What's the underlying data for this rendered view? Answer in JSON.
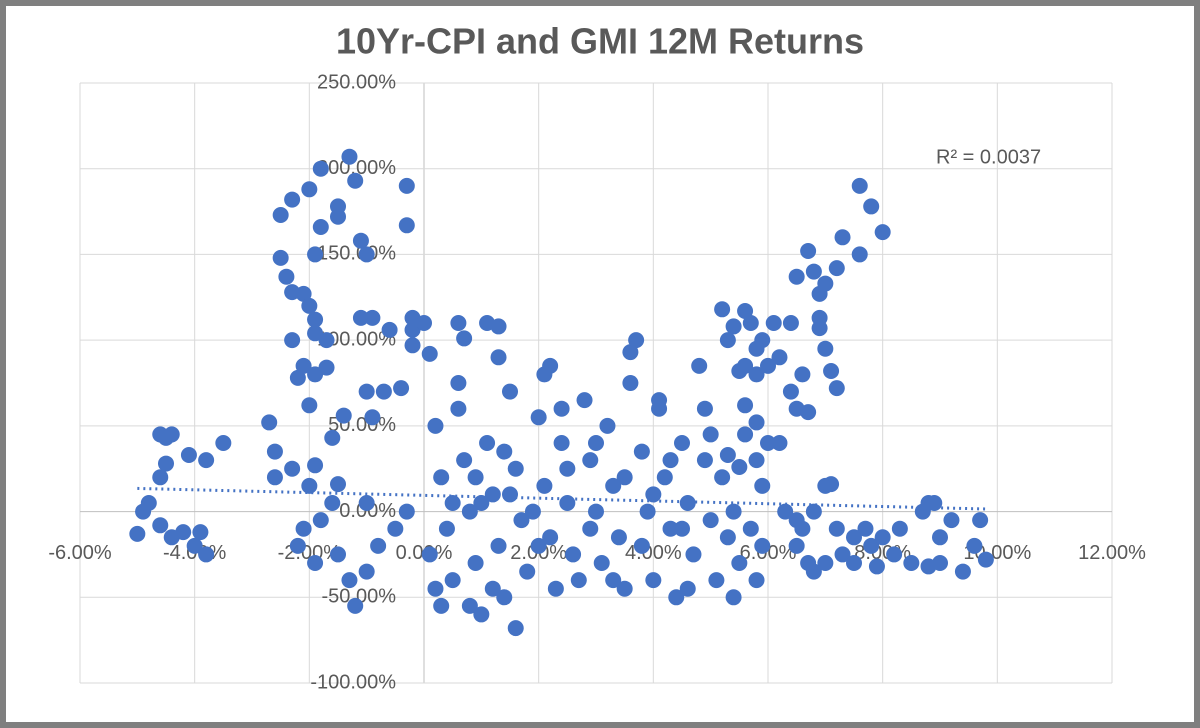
{
  "chart_data": {
    "type": "scatter",
    "title": "10Yr-CPI and GMI 12M Returns",
    "annotation": "R² = 0.0037",
    "color": "#4472c4",
    "grid": true,
    "xlim": [
      -6,
      12
    ],
    "xticks": [
      {
        "value": -6,
        "label": "-6.00%"
      },
      {
        "value": -4,
        "label": "-4.00%"
      },
      {
        "value": -2,
        "label": "-2.00%"
      },
      {
        "value": 0,
        "label": "0.00%"
      },
      {
        "value": 2,
        "label": "2.00%"
      },
      {
        "value": 4,
        "label": "4.00%"
      },
      {
        "value": 6,
        "label": "6.00%"
      },
      {
        "value": 8,
        "label": "8.00%"
      },
      {
        "value": 10,
        "label": "10.00%"
      },
      {
        "value": 12,
        "label": "12.00%"
      }
    ],
    "ylim": [
      -100,
      250
    ],
    "yticks": [
      {
        "value": -100,
        "label": "-100.00%"
      },
      {
        "value": -50,
        "label": "-50.00%"
      },
      {
        "value": 0,
        "label": "0.00%"
      },
      {
        "value": 50,
        "label": "50.00%"
      },
      {
        "value": 100,
        "label": "100.00%"
      },
      {
        "value": 150,
        "label": "150.00%"
      },
      {
        "value": 200,
        "label": "200.00%"
      },
      {
        "value": 250,
        "label": "250.00%"
      }
    ],
    "trendline": {
      "style": "dotted",
      "x": [
        -5,
        9.8
      ],
      "y": [
        13.5,
        1.5
      ]
    },
    "x": [
      -4.6,
      -4.4,
      -4.5,
      -4.5,
      -4.6,
      -4.1,
      -3.8,
      -3.5,
      -4.8,
      -4.9,
      -5,
      -4.6,
      -4.4,
      -4.2,
      -3.9,
      -3.8,
      -4.0,
      -2.5,
      -2.3,
      -2.0,
      -1.8,
      -1.3,
      -1.5,
      -1.5,
      -1.2,
      -0.3,
      -0.3,
      -1.1,
      -1.0,
      -1.9,
      -2.5,
      -2.4,
      -2.3,
      -2.1,
      -2.0,
      -1.9,
      -1.9,
      -2.3,
      -1.7,
      -2.1,
      -1.9,
      -1.7,
      -2.2,
      -2.0,
      -1.8,
      -1.1,
      -0.9,
      -0.6,
      -0.2,
      -0.2,
      0.0,
      0.6,
      0.7,
      1.1,
      1.3,
      -0.2,
      0.1,
      -2.7,
      -2.6,
      -2.6,
      -2.3,
      -2.0,
      -1.9,
      -1.6,
      -1.4,
      -1.5,
      -1.6,
      -1.8,
      -2.1,
      -2.2,
      -1.9,
      -1.5,
      -1.3,
      -1.0,
      -1.2,
      -0.8,
      -0.5,
      -0.3,
      -1.0,
      -0.7,
      -0.4,
      -0.9,
      -1.0,
      0.2,
      0.3,
      0.4,
      0.5,
      0.6,
      0.7,
      0.8,
      0.9,
      1.0,
      1.1,
      1.2,
      1.3,
      1.4,
      1.5,
      1.6,
      1.7,
      1.8,
      1.6,
      2.0,
      2.1,
      2.2,
      2.3,
      2.2,
      2.4,
      2.5,
      2.6,
      2.8,
      2.9,
      3.0,
      3.1,
      3.2,
      3.3,
      3.4,
      3.5,
      3.6,
      3.6,
      3.7,
      3.8,
      3.9,
      4.0,
      4.1,
      4.2,
      4.3,
      4.4,
      4.5,
      4.6,
      4.7,
      4.8,
      4.9,
      5.0,
      5.1,
      5.2,
      5.3,
      5.4,
      0.1,
      0.3,
      0.9,
      1.2,
      1.9,
      2.7,
      3.3,
      4.6,
      0.5,
      1.0,
      1.5,
      2.0,
      2.5,
      3.0,
      3.5,
      4.0,
      4.5,
      5.0,
      0.2,
      0.8,
      1.4,
      2.4,
      2.9,
      3.8,
      4.3,
      0.6,
      1.3,
      2.1,
      4.1,
      4.9,
      5.2,
      5.6,
      5.4,
      5.7,
      5.9,
      6.1,
      5.3,
      5.8,
      5.6,
      5.5,
      5.8,
      6.0,
      6.2,
      6.4,
      6.5,
      6.7,
      6.6,
      6.4,
      6.5,
      6.7,
      6.8,
      6.9,
      7.0,
      7.2,
      7.3,
      7.6,
      7.6,
      7.8,
      8.0,
      6.9,
      6.9,
      7.0,
      7.1,
      7.2,
      5.6,
      5.6,
      5.8,
      6.0,
      6.2,
      5.3,
      5.5,
      5.8,
      5.9,
      5.4,
      5.7,
      5.9,
      5.8,
      5.5,
      6.3,
      6.5,
      6.5,
      6.7,
      6.8,
      6.8,
      7.0,
      7.1,
      7.2,
      7.3,
      7.5,
      7.5,
      7.7,
      7.8,
      7.9,
      8.0,
      8.2,
      8.3,
      8.5,
      8.7,
      8.8,
      8.9,
      9.0,
      9.2,
      9.0,
      8.8,
      9.4,
      9.6,
      9.7,
      9.8,
      7.0,
      6.6
    ],
    "y": [
      45,
      45,
      43,
      28,
      20,
      33,
      30,
      40,
      5,
      0,
      -13,
      -8,
      -15,
      -12,
      -12,
      -25,
      -20,
      173,
      182,
      188,
      200,
      207,
      172,
      178,
      193,
      190,
      167,
      158,
      150,
      150,
      148,
      137,
      128,
      127,
      120,
      112,
      104,
      100,
      100,
      85,
      80,
      84,
      78,
      62,
      166,
      113,
      113,
      106,
      113,
      106,
      110,
      110,
      101,
      110,
      108,
      97,
      92,
      52,
      35,
      20,
      25,
      15,
      27,
      43,
      56,
      16,
      5,
      -5,
      -10,
      -20,
      -30,
      -25,
      -40,
      -35,
      -55,
      -20,
      -10,
      0,
      70,
      70,
      72,
      55,
      5,
      50,
      20,
      -10,
      -40,
      60,
      30,
      0,
      -30,
      -60,
      40,
      10,
      -20,
      -50,
      70,
      25,
      -5,
      -35,
      -68,
      55,
      15,
      -15,
      -45,
      85,
      40,
      5,
      -25,
      65,
      30,
      0,
      -30,
      50,
      15,
      -15,
      -45,
      75,
      93,
      100,
      35,
      0,
      -40,
      60,
      20,
      -10,
      -50,
      40,
      5,
      -25,
      85,
      30,
      -5,
      -40,
      20,
      -15,
      -50,
      -25,
      -55,
      20,
      -45,
      0,
      -40,
      -40,
      -45,
      5,
      5,
      10,
      -20,
      25,
      40,
      20,
      10,
      -10,
      45,
      -45,
      -55,
      35,
      60,
      -10,
      -20,
      30,
      75,
      90,
      80,
      65,
      60,
      118,
      117,
      108,
      110,
      100,
      110,
      100,
      95,
      85,
      82,
      80,
      85,
      90,
      70,
      60,
      58,
      80,
      110,
      137,
      152,
      140,
      127,
      133,
      142,
      160,
      150,
      190,
      178,
      163,
      113,
      107,
      95,
      82,
      72,
      62,
      45,
      52,
      40,
      40,
      33,
      26,
      30,
      15,
      0,
      -10,
      -20,
      -40,
      -30,
      0,
      -5,
      -20,
      -30,
      -35,
      0,
      15,
      16,
      -10,
      -25,
      -15,
      -30,
      -10,
      -20,
      -32,
      -15,
      -25,
      -10,
      -30,
      0,
      5,
      5,
      -15,
      -5,
      -30,
      -32,
      -35,
      -20,
      -5,
      -28,
      -30,
      -10
    ]
  }
}
